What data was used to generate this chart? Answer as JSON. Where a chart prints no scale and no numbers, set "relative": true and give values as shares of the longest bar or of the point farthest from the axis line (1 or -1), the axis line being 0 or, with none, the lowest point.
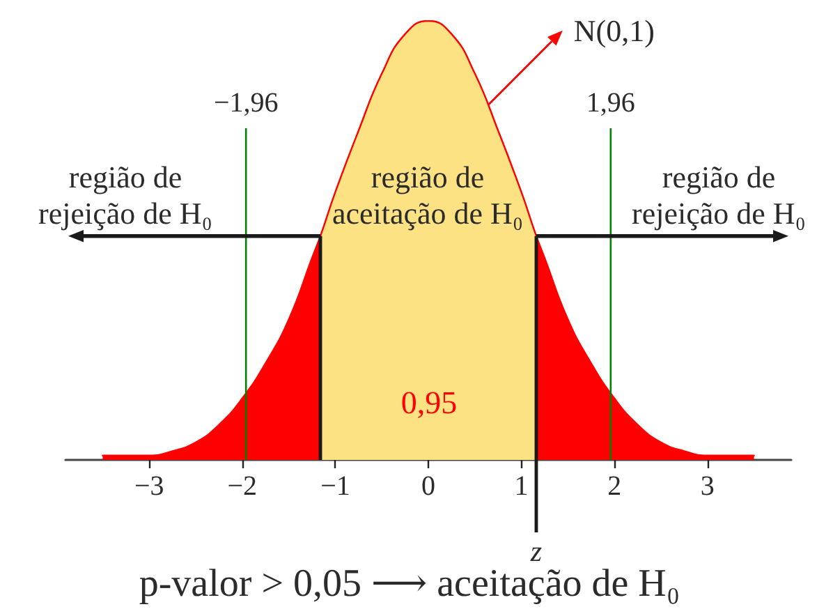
{
  "chart_data": {
    "type": "area",
    "relative": true,
    "xlim": [
      -3.9,
      3.9
    ],
    "xticks": [
      {
        "value": -3,
        "label": "−3"
      },
      {
        "value": -2,
        "label": "−2"
      },
      {
        "value": -1,
        "label": "−1"
      },
      0,
      1,
      2,
      3
    ],
    "series": [
      {
        "type": "line",
        "color": "#ff0000",
        "x": [
          -3.5,
          -3.25,
          -3,
          -2.75,
          -2.5,
          -2.25,
          -2,
          -1.75,
          -1.5,
          -1.25,
          -1.16,
          -1,
          -0.75,
          -0.5,
          -0.25,
          0,
          0.25,
          0.5,
          0.75,
          1,
          1.16,
          1.25,
          1.5,
          1.75,
          2,
          2.25,
          2.5,
          2.75,
          3,
          3.25,
          3.5
        ],
        "values": [
          0.01,
          0.01,
          0.01,
          0.02,
          0.04,
          0.08,
          0.14,
          0.22,
          0.32,
          0.46,
          0.51,
          0.61,
          0.75,
          0.88,
          0.97,
          1,
          0.97,
          0.88,
          0.75,
          0.61,
          0.51,
          0.46,
          0.32,
          0.22,
          0.14,
          0.08,
          0.04,
          0.02,
          0.01,
          0.01,
          0.01
        ]
      },
      {
        "color": "#ff0000",
        "x": [
          -3.5,
          -3.25,
          -3,
          -2.75,
          -2.5,
          -2.25,
          -2,
          -1.75,
          -1.5,
          -1.25,
          -1.16
        ],
        "values": [
          0.01,
          0.01,
          0.01,
          0.02,
          0.04,
          0.08,
          0.14,
          0.22,
          0.32,
          0.46,
          0.51
        ]
      },
      {
        "color": "#fde283",
        "x": [
          -1.16,
          -1,
          -0.75,
          -0.5,
          -0.25,
          0,
          0.25,
          0.5,
          0.75,
          1,
          1.16
        ],
        "values": [
          0.51,
          0.61,
          0.75,
          0.88,
          0.97,
          1,
          0.97,
          0.88,
          0.75,
          0.61,
          0.51
        ]
      },
      {
        "color": "#ff0000",
        "x": [
          1.16,
          1.25,
          1.5,
          1.75,
          2,
          2.25,
          2.5,
          2.75,
          3,
          3.25,
          3.5
        ],
        "values": [
          0.51,
          0.46,
          0.32,
          0.22,
          0.14,
          0.08,
          0.04,
          0.02,
          0.01,
          0.01,
          0.01
        ]
      }
    ],
    "ref_lines": [
      {
        "axis": "x",
        "value": -1.96,
        "label": "−1,96",
        "color": "#008000"
      },
      {
        "axis": "x",
        "value": 1.96,
        "label": "1,96",
        "color": "#008000"
      },
      {
        "axis": "x",
        "value": -1.16,
        "color": "#1a1a1a"
      },
      {
        "axis": "x",
        "value": 1.16,
        "label": "z",
        "color": "#1a1a1a"
      }
    ],
    "annotations": [
      "região de\nrejeição de H₀",
      "região de\naceitação de H₀",
      "região de\nrejeição de H₀",
      "0,95",
      {
        "text": "N(0,1)",
        "x": 0.65,
        "y": 0.81
      },
      "p-valor > 0,05 ⟶ aceitação de H₀"
    ]
  }
}
